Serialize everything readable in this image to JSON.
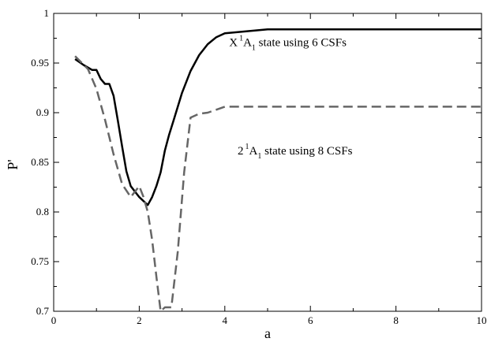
{
  "chart_data": {
    "type": "line",
    "title": "",
    "xlabel": "a",
    "ylabel": "P'",
    "xlim": [
      0,
      10
    ],
    "ylim": [
      0.7,
      1.0
    ],
    "xticks": [
      0,
      2,
      4,
      6,
      8,
      10
    ],
    "yticks": [
      0.7,
      0.75,
      0.8,
      0.85,
      0.9,
      0.95,
      1
    ],
    "ytick_labels": [
      "0.7",
      "0.75",
      "0.8",
      "0.85",
      "0.9",
      "0.95",
      "1"
    ],
    "grid": false,
    "legend": "none",
    "series": [
      {
        "style": "solid",
        "color": "#000000",
        "x": [
          0.5,
          0.7,
          0.9,
          1.0,
          1.1,
          1.2,
          1.3,
          1.4,
          1.5,
          1.6,
          1.7,
          1.8,
          2.0,
          2.2,
          2.3,
          2.4,
          2.5,
          2.6,
          2.7,
          2.8,
          3.0,
          3.2,
          3.4,
          3.6,
          3.8,
          4.0,
          4.5,
          5.0,
          6.0,
          8.0,
          10.0
        ],
        "y": [
          0.954,
          0.948,
          0.943,
          0.943,
          0.934,
          0.929,
          0.929,
          0.917,
          0.892,
          0.866,
          0.841,
          0.826,
          0.815,
          0.807,
          0.815,
          0.826,
          0.84,
          0.862,
          0.878,
          0.892,
          0.92,
          0.942,
          0.958,
          0.969,
          0.976,
          0.98,
          0.982,
          0.984,
          0.984,
          0.984,
          0.984
        ]
      },
      {
        "style": "dashed",
        "color": "#666666",
        "x": [
          0.5,
          0.8,
          1.0,
          1.2,
          1.4,
          1.6,
          1.8,
          2.0,
          2.1,
          2.2,
          2.3,
          2.4,
          2.5,
          2.6,
          2.75,
          2.9,
          3.05,
          3.2,
          3.4,
          3.6,
          4.0,
          5.0,
          6.0,
          8.0,
          10.0
        ],
        "y": [
          0.957,
          0.944,
          0.924,
          0.893,
          0.858,
          0.828,
          0.815,
          0.826,
          0.815,
          0.8,
          0.772,
          0.735,
          0.7,
          0.704,
          0.704,
          0.76,
          0.84,
          0.895,
          0.899,
          0.9,
          0.906,
          0.906,
          0.906,
          0.906,
          0.906
        ]
      }
    ],
    "annotations": [
      {
        "anchor_x": 4.1,
        "anchor_y": 0.967,
        "base": "X",
        "sup": "1",
        "main": "A",
        "sub": "1",
        "rest": " state using 6 CSFs"
      },
      {
        "anchor_x": 4.3,
        "anchor_y": 0.858,
        "base": "2",
        "sup": "1",
        "main": "A",
        "sub": "1",
        "rest": " state using 8 CSFs"
      }
    ]
  }
}
